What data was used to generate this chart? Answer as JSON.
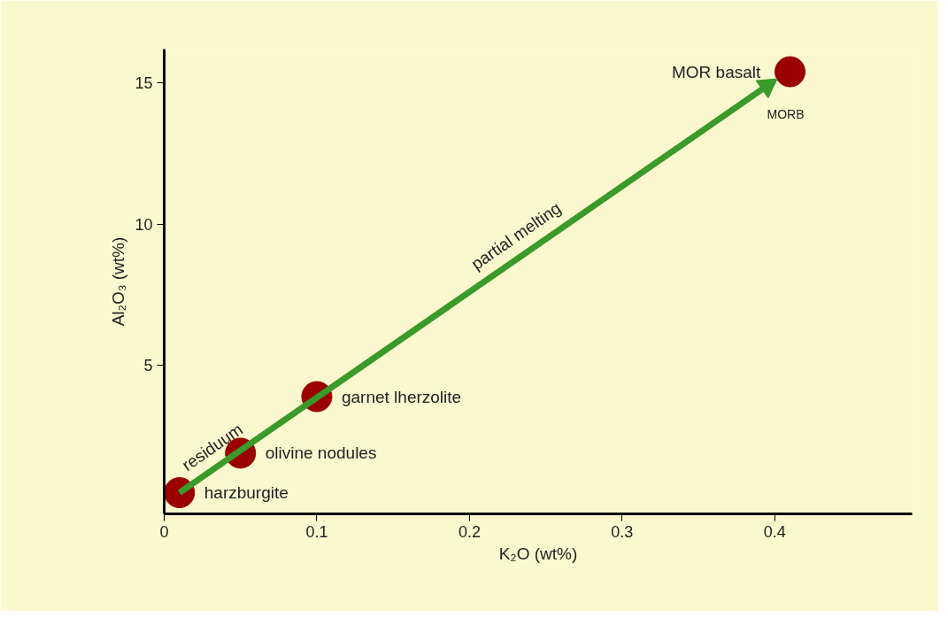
{
  "chart_data": {
    "type": "scatter",
    "xlabel": "K₂O (wt%)",
    "ylabel": "Al₂O₃ (wt%)",
    "xlim": [
      0,
      0.49
    ],
    "ylim": [
      -0.25,
      16.2
    ],
    "xticks": [
      0,
      0.1,
      0.2,
      0.3,
      0.4
    ],
    "yticks": [
      5,
      10,
      15
    ],
    "grid": false,
    "marker": "circle",
    "series": [
      {
        "color": "#9b0000",
        "x": [
          0.01,
          0.05,
          0.1,
          0.41
        ],
        "values": [
          0.5,
          1.9,
          3.9,
          15.4
        ]
      },
      {
        "type": "line",
        "marker": "triangle",
        "color": "#3a9a2a",
        "x": [
          0.01,
          0.395
        ],
        "values": [
          0.5,
          14.9
        ]
      }
    ],
    "annotations": [
      {
        "text": "harzburgite",
        "x": 0.01,
        "y": 0.5
      },
      {
        "text": "olivine nodules",
        "x": 0.05,
        "y": 1.9
      },
      {
        "text": "garnet  lherzolite",
        "x": 0.1,
        "y": 3.9
      },
      {
        "text": "MOR  basalt",
        "x": 0.41,
        "y": 15.4
      },
      "MORB",
      {
        "text": "partial melting",
        "x": 0.234,
        "y": 8.88
      },
      {
        "text": "residuum",
        "x": 0.035,
        "y": 1.4
      }
    ]
  }
}
